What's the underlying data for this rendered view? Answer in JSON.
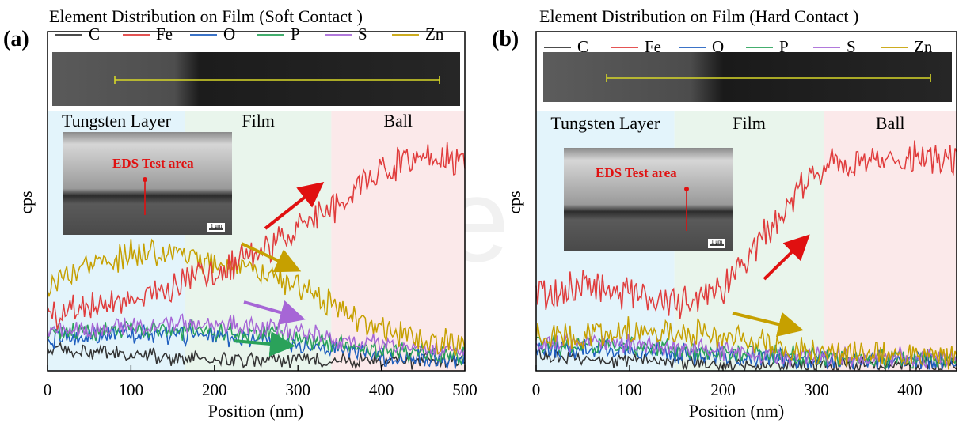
{
  "colors": {
    "C": "#333333",
    "Fe": "#e03c3c",
    "O": "#1f5fbf",
    "P": "#2aa25a",
    "S": "#a666d6",
    "Zn": "#c6a000",
    "tungsten_region": "#e3f4fb",
    "film_region": "#e9f5ec",
    "ball_region": "#fbe9ea",
    "annotation_red": "#e01010",
    "scan_line": "#d7d728"
  },
  "chart_data": [
    {
      "panel_label": "(a)",
      "type": "line",
      "title": "Element Distribution on Film (Soft Contact )",
      "xlabel": "Position (nm)",
      "ylabel": "cps",
      "xlim": [
        0,
        500
      ],
      "xticks": [
        "0",
        "100",
        "200",
        "300",
        "400",
        "500"
      ],
      "legend": [
        "C",
        "Fe",
        "O",
        "P",
        "S",
        "Zn"
      ],
      "legend_placement": "top",
      "regions": [
        {
          "name": "Tungsten Layer",
          "x_start": 0,
          "x_end": 165
        },
        {
          "name": "Film",
          "x_start": 165,
          "x_end": 340
        },
        {
          "name": "Ball",
          "x_start": 340,
          "x_end": 500
        }
      ],
      "inset_text": "EDS Test area",
      "scale_text": "1 μm",
      "ylim": [
        0,
        100
      ],
      "series": [
        {
          "name": "C",
          "x": [
            0,
            50,
            100,
            150,
            200,
            250,
            300,
            350,
            400,
            450,
            500
          ],
          "values": [
            8,
            7,
            6,
            5,
            4,
            4,
            4,
            4,
            4,
            4,
            4
          ]
        },
        {
          "name": "Fe",
          "x": [
            0,
            50,
            100,
            150,
            200,
            250,
            300,
            350,
            400,
            450,
            500
          ],
          "values": [
            22,
            25,
            28,
            32,
            38,
            45,
            55,
            65,
            78,
            82,
            80
          ]
        },
        {
          "name": "O",
          "x": [
            0,
            50,
            100,
            150,
            200,
            250,
            300,
            350,
            400,
            450,
            500
          ],
          "values": [
            12,
            13,
            14,
            14,
            13,
            12,
            10,
            8,
            6,
            5,
            4
          ]
        },
        {
          "name": "P",
          "x": [
            0,
            50,
            100,
            150,
            200,
            250,
            300,
            350,
            400,
            450,
            500
          ],
          "values": [
            15,
            15,
            16,
            16,
            15,
            14,
            12,
            10,
            8,
            7,
            6
          ]
        },
        {
          "name": "S",
          "x": [
            0,
            50,
            100,
            150,
            200,
            250,
            300,
            350,
            400,
            450,
            500
          ],
          "values": [
            16,
            16,
            17,
            18,
            18,
            17,
            15,
            12,
            10,
            9,
            8
          ]
        },
        {
          "name": "Zn",
          "x": [
            0,
            50,
            100,
            150,
            200,
            250,
            300,
            350,
            400,
            450,
            500
          ],
          "values": [
            32,
            40,
            45,
            45,
            42,
            38,
            32,
            24,
            16,
            12,
            10
          ]
        }
      ]
    },
    {
      "panel_label": "(b)",
      "type": "line",
      "title": "Element Distribution on Film (Hard Contact )",
      "xlabel": "Position (nm)",
      "ylabel": "cps",
      "xlim": [
        0,
        450
      ],
      "xticks": [
        "0",
        "100",
        "200",
        "300",
        "400"
      ],
      "legend": [
        "C",
        "Fe",
        "O",
        "P",
        "S",
        "Zn"
      ],
      "legend_placement": "top",
      "regions": [
        {
          "name": "Tungsten Layer",
          "x_start": 0,
          "x_end": 148
        },
        {
          "name": "Film",
          "x_start": 148,
          "x_end": 308
        },
        {
          "name": "Ball",
          "x_start": 308,
          "x_end": 450
        }
      ],
      "inset_text": "EDS Test area",
      "scale_text": "1 μm",
      "ylim": [
        0,
        100
      ],
      "series": [
        {
          "name": "C",
          "x": [
            0,
            50,
            100,
            150,
            200,
            250,
            300,
            350,
            400,
            450
          ],
          "values": [
            6,
            5,
            4,
            3,
            2,
            2,
            2,
            2,
            2,
            2
          ]
        },
        {
          "name": "Fe",
          "x": [
            0,
            50,
            100,
            150,
            200,
            250,
            300,
            350,
            400,
            450
          ],
          "values": [
            30,
            32,
            30,
            26,
            32,
            55,
            78,
            80,
            82,
            80
          ]
        },
        {
          "name": "O",
          "x": [
            0,
            50,
            100,
            150,
            200,
            250,
            300,
            350,
            400,
            450
          ],
          "values": [
            8,
            8,
            8,
            7,
            6,
            5,
            4,
            4,
            4,
            4
          ]
        },
        {
          "name": "P",
          "x": [
            0,
            50,
            100,
            150,
            200,
            250,
            300,
            350,
            400,
            450
          ],
          "values": [
            10,
            10,
            9,
            8,
            7,
            6,
            5,
            5,
            5,
            5
          ]
        },
        {
          "name": "S",
          "x": [
            0,
            50,
            100,
            150,
            200,
            250,
            300,
            350,
            400,
            450
          ],
          "values": [
            11,
            11,
            10,
            9,
            8,
            6,
            5,
            5,
            5,
            5
          ]
        },
        {
          "name": "Zn",
          "x": [
            0,
            50,
            100,
            150,
            200,
            250,
            300,
            350,
            400,
            450
          ],
          "values": [
            13,
            14,
            15,
            15,
            14,
            11,
            7,
            6,
            5,
            5
          ]
        }
      ]
    }
  ]
}
